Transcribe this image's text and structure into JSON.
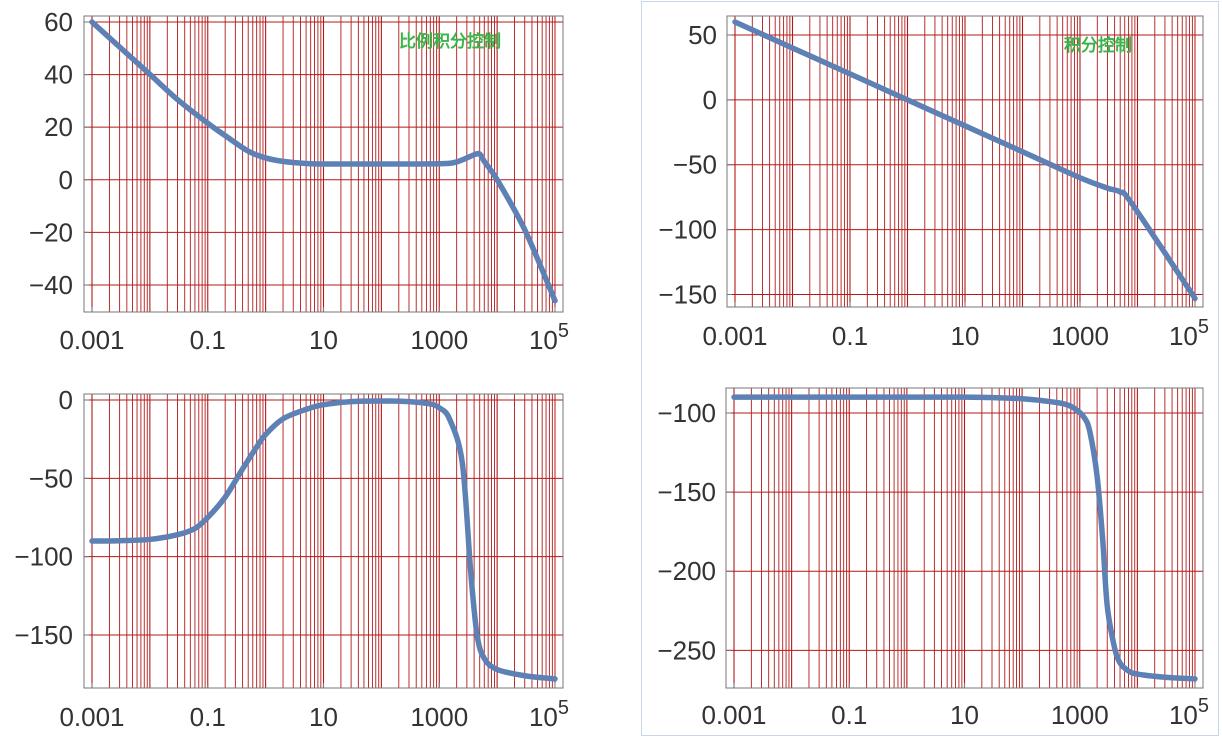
{
  "chart_data": [
    {
      "type": "line",
      "panel": "top-left",
      "annotation": "比例积分控制",
      "xscale": "log",
      "xlim": [
        0.001,
        100000
      ],
      "ylim": [
        -48,
        60
      ],
      "xticks": [
        0.001,
        0.1,
        10,
        1000,
        100000
      ],
      "xtick_labels": [
        "0.001",
        "0.1",
        "10",
        "1000",
        "10^5"
      ],
      "yticks": [
        60,
        40,
        20,
        0,
        -20,
        -40
      ],
      "ytick_labels": [
        "60",
        "40",
        "20",
        "0",
        "−20",
        "−40"
      ],
      "grid": true,
      "series": [
        {
          "x": [
            0.001,
            0.003,
            0.01,
            0.03,
            0.1,
            0.2,
            0.5,
            1,
            2,
            5,
            10,
            100,
            1000,
            2000,
            4000,
            5000,
            6000,
            10000,
            30000,
            100000
          ],
          "y": [
            60,
            50.5,
            40.1,
            30.5,
            21.5,
            16.8,
            10.9,
            8.3,
            7.0,
            6.2,
            6.0,
            6.0,
            6.1,
            6.8,
            9.5,
            9.8,
            7.0,
            0,
            -19,
            -46
          ]
        }
      ]
    },
    {
      "type": "line",
      "panel": "top-right",
      "annotation": "积分控制",
      "xscale": "log",
      "xlim": [
        0.001,
        100000
      ],
      "ylim": [
        -155,
        60
      ],
      "xticks": [
        0.001,
        0.1,
        10,
        1000,
        100000
      ],
      "xtick_labels": [
        "0.001",
        "0.1",
        "10",
        "1000",
        "10^5"
      ],
      "yticks": [
        50,
        0,
        -50,
        -100,
        -150
      ],
      "ytick_labels": [
        "50",
        "0",
        "−50",
        "−100",
        "−150"
      ],
      "grid": true,
      "series": [
        {
          "x": [
            0.001,
            0.01,
            0.1,
            1,
            10,
            100,
            1000,
            3000,
            5000,
            8000,
            100000
          ],
          "y": [
            60,
            40,
            20,
            0,
            -20,
            -40,
            -60,
            -68,
            -71,
            -80,
            -153
          ]
        }
      ]
    },
    {
      "type": "line",
      "panel": "bottom-left",
      "xscale": "log",
      "xlim": [
        0.001,
        100000
      ],
      "ylim": [
        -180,
        0
      ],
      "xticks": [
        0.001,
        0.1,
        10,
        1000,
        100000
      ],
      "xtick_labels": [
        "0.001",
        "0.1",
        "10",
        "1000",
        "10^5"
      ],
      "yticks": [
        0,
        -50,
        -100,
        -150
      ],
      "ytick_labels": [
        "0",
        "−50",
        "−100",
        "−150"
      ],
      "grid": true,
      "series": [
        {
          "x": [
            0.001,
            0.003,
            0.01,
            0.03,
            0.06,
            0.1,
            0.2,
            0.4,
            0.7,
            1,
            2,
            5,
            10,
            30,
            100,
            300,
            700,
            1000,
            1500,
            2500,
            3500,
            4500,
            6000,
            10000,
            30000,
            100000
          ],
          "y": [
            -90,
            -89.8,
            -89,
            -86,
            -82,
            -75,
            -62,
            -44,
            -30,
            -22,
            -12,
            -6,
            -3,
            -1,
            -0.6,
            -1,
            -2.5,
            -5,
            -12,
            -40,
            -110,
            -150,
            -165,
            -172,
            -176,
            -178
          ]
        }
      ]
    },
    {
      "type": "line",
      "panel": "bottom-right",
      "xscale": "log",
      "xlim": [
        0.001,
        100000
      ],
      "ylim": [
        -270,
        -88
      ],
      "xticks": [
        0.001,
        0.1,
        10,
        1000,
        100000
      ],
      "xtick_labels": [
        "0.001",
        "0.1",
        "10",
        "1000",
        "10^5"
      ],
      "yticks": [
        -100,
        -150,
        -200,
        -250
      ],
      "ytick_labels": [
        "−100",
        "−150",
        "−200",
        "−250"
      ],
      "grid": true,
      "series": [
        {
          "x": [
            0.001,
            1,
            10,
            50,
            100,
            200,
            500,
            800,
            1200,
            1500,
            2000,
            2500,
            3000,
            4000,
            5000,
            7000,
            10000,
            30000,
            100000
          ],
          "y": [
            -90,
            -90,
            -90,
            -90.5,
            -91,
            -92,
            -94,
            -97,
            -103,
            -112,
            -140,
            -180,
            -222,
            -248,
            -258,
            -263,
            -265,
            -267,
            -268
          ]
        }
      ]
    }
  ]
}
